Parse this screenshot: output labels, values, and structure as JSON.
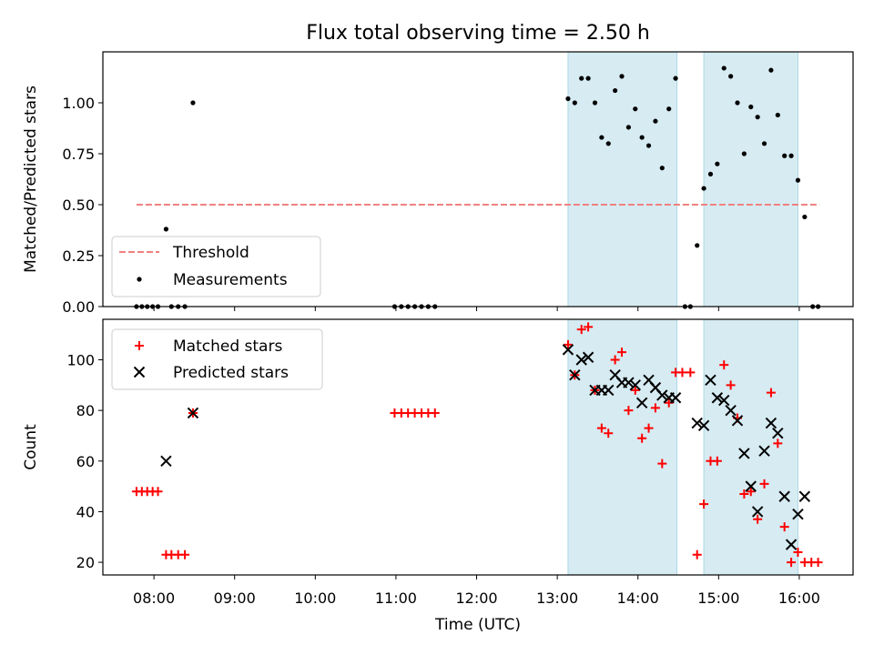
{
  "chart_data": [
    {
      "type": "scatter",
      "title": "Flux total observing time = 2.50 h",
      "xlabel": "",
      "ylabel": "Matched/Predicted stars",
      "xlim": [
        "07:22",
        "16:40"
      ],
      "ylim": [
        0,
        1.25
      ],
      "yticks": [
        0.0,
        0.25,
        0.5,
        0.75,
        1.0
      ],
      "ytick_labels": [
        "0.00",
        "0.25",
        "0.50",
        "0.75",
        "1.00"
      ],
      "grid": false,
      "legend": "lower-left",
      "shaded_intervals": [
        [
          "13:08",
          "14:29"
        ],
        [
          "14:49",
          "15:59"
        ]
      ],
      "threshold": {
        "name": "Threshold",
        "y": 0.5,
        "x_start": "07:47",
        "x_end": "16:15",
        "color": "#f08080"
      },
      "series": [
        {
          "name": "Measurements",
          "color": "#000000",
          "points": [
            [
              "07:47",
              0
            ],
            [
              "07:51",
              0
            ],
            [
              "07:55",
              0
            ],
            [
              "07:59",
              0
            ],
            [
              "08:03",
              0
            ],
            [
              "08:09",
              0.38
            ],
            [
              "08:13",
              0
            ],
            [
              "08:18",
              0
            ],
            [
              "08:23",
              0
            ],
            [
              "08:29",
              1.0
            ],
            [
              "10:59",
              0
            ],
            [
              "11:04",
              0
            ],
            [
              "11:09",
              0
            ],
            [
              "11:14",
              0
            ],
            [
              "11:19",
              0
            ],
            [
              "11:24",
              0
            ],
            [
              "11:29",
              0
            ],
            [
              "13:08",
              1.02
            ],
            [
              "13:13",
              1.0
            ],
            [
              "13:18",
              1.12
            ],
            [
              "13:23",
              1.12
            ],
            [
              "13:28",
              1.0
            ],
            [
              "13:33",
              0.83
            ],
            [
              "13:38",
              0.8
            ],
            [
              "13:43",
              1.06
            ],
            [
              "13:48",
              1.13
            ],
            [
              "13:53",
              0.88
            ],
            [
              "13:58",
              0.97
            ],
            [
              "14:03",
              0.83
            ],
            [
              "14:08",
              0.79
            ],
            [
              "14:13",
              0.91
            ],
            [
              "14:18",
              0.68
            ],
            [
              "14:23",
              0.97
            ],
            [
              "14:28",
              1.12
            ],
            [
              "14:35",
              0
            ],
            [
              "14:39",
              0
            ],
            [
              "14:44",
              0.3
            ],
            [
              "14:49",
              0.58
            ],
            [
              "14:54",
              0.65
            ],
            [
              "14:59",
              0.7
            ],
            [
              "15:04",
              1.17
            ],
            [
              "15:09",
              1.13
            ],
            [
              "15:14",
              1.0
            ],
            [
              "15:19",
              0.75
            ],
            [
              "15:24",
              0.98
            ],
            [
              "15:29",
              0.93
            ],
            [
              "15:34",
              0.8
            ],
            [
              "15:39",
              1.16
            ],
            [
              "15:44",
              0.94
            ],
            [
              "15:49",
              0.74
            ],
            [
              "15:54",
              0.74
            ],
            [
              "15:59",
              0.62
            ],
            [
              "16:04",
              0.44
            ],
            [
              "16:10",
              0
            ],
            [
              "16:14",
              0
            ]
          ]
        }
      ]
    },
    {
      "type": "scatter",
      "title": "",
      "xlabel": "Time (UTC)",
      "ylabel": "Count",
      "xlim": [
        "07:22",
        "16:40"
      ],
      "ylim": [
        15,
        116
      ],
      "yticks": [
        20,
        40,
        60,
        80,
        100
      ],
      "xticks": [
        "08:00",
        "09:00",
        "10:00",
        "11:00",
        "12:00",
        "13:00",
        "14:00",
        "15:00",
        "16:00"
      ],
      "grid": false,
      "legend": "top-left",
      "shaded_intervals": [
        [
          "13:08",
          "14:29"
        ],
        [
          "14:49",
          "15:59"
        ]
      ],
      "series": [
        {
          "name": "Matched stars",
          "marker": "plus",
          "color": "#ff0000",
          "points": [
            [
              "07:47",
              48
            ],
            [
              "07:51",
              48
            ],
            [
              "07:55",
              48
            ],
            [
              "07:59",
              48
            ],
            [
              "08:03",
              48
            ],
            [
              "08:09",
              23
            ],
            [
              "08:13",
              23
            ],
            [
              "08:18",
              23
            ],
            [
              "08:23",
              23
            ],
            [
              "08:29",
              79
            ],
            [
              "10:59",
              79
            ],
            [
              "11:04",
              79
            ],
            [
              "11:09",
              79
            ],
            [
              "11:14",
              79
            ],
            [
              "11:19",
              79
            ],
            [
              "11:24",
              79
            ],
            [
              "11:29",
              79
            ],
            [
              "13:08",
              106
            ],
            [
              "13:13",
              94
            ],
            [
              "13:18",
              112
            ],
            [
              "13:23",
              113
            ],
            [
              "13:28",
              88
            ],
            [
              "13:33",
              73
            ],
            [
              "13:38",
              71
            ],
            [
              "13:43",
              100
            ],
            [
              "13:48",
              103
            ],
            [
              "13:53",
              80
            ],
            [
              "13:58",
              88
            ],
            [
              "14:03",
              69
            ],
            [
              "14:08",
              73
            ],
            [
              "14:13",
              81
            ],
            [
              "14:18",
              59
            ],
            [
              "14:23",
              83
            ],
            [
              "14:28",
              95
            ],
            [
              "14:33",
              95
            ],
            [
              "14:39",
              95
            ],
            [
              "14:44",
              23
            ],
            [
              "14:49",
              43
            ],
            [
              "14:54",
              60
            ],
            [
              "14:59",
              60
            ],
            [
              "15:04",
              98
            ],
            [
              "15:09",
              90
            ],
            [
              "15:14",
              77
            ],
            [
              "15:19",
              47
            ],
            [
              "15:24",
              48
            ],
            [
              "15:29",
              37
            ],
            [
              "15:34",
              51
            ],
            [
              "15:39",
              87
            ],
            [
              "15:44",
              67
            ],
            [
              "15:49",
              34
            ],
            [
              "15:54",
              20
            ],
            [
              "15:59",
              24
            ],
            [
              "16:04",
              20
            ],
            [
              "16:09",
              20
            ],
            [
              "16:14",
              20
            ]
          ]
        },
        {
          "name": "Predicted stars",
          "marker": "x",
          "color": "#000000",
          "points": [
            [
              "08:09",
              60
            ],
            [
              "08:29",
              79
            ],
            [
              "13:08",
              104
            ],
            [
              "13:13",
              94
            ],
            [
              "13:18",
              100
            ],
            [
              "13:23",
              101
            ],
            [
              "13:28",
              88
            ],
            [
              "13:33",
              88
            ],
            [
              "13:38",
              88
            ],
            [
              "13:43",
              94
            ],
            [
              "13:48",
              91
            ],
            [
              "13:53",
              91
            ],
            [
              "13:58",
              90
            ],
            [
              "14:03",
              83
            ],
            [
              "14:08",
              92
            ],
            [
              "14:13",
              89
            ],
            [
              "14:18",
              86
            ],
            [
              "14:23",
              85
            ],
            [
              "14:28",
              85
            ],
            [
              "14:44",
              75
            ],
            [
              "14:49",
              74
            ],
            [
              "14:54",
              92
            ],
            [
              "14:59",
              85
            ],
            [
              "15:04",
              84
            ],
            [
              "15:09",
              80
            ],
            [
              "15:14",
              76
            ],
            [
              "15:19",
              63
            ],
            [
              "15:24",
              50
            ],
            [
              "15:29",
              40
            ],
            [
              "15:34",
              64
            ],
            [
              "15:39",
              75
            ],
            [
              "15:44",
              71
            ],
            [
              "15:49",
              46
            ],
            [
              "15:54",
              27
            ],
            [
              "15:59",
              39
            ],
            [
              "16:04",
              46
            ]
          ]
        }
      ]
    }
  ]
}
